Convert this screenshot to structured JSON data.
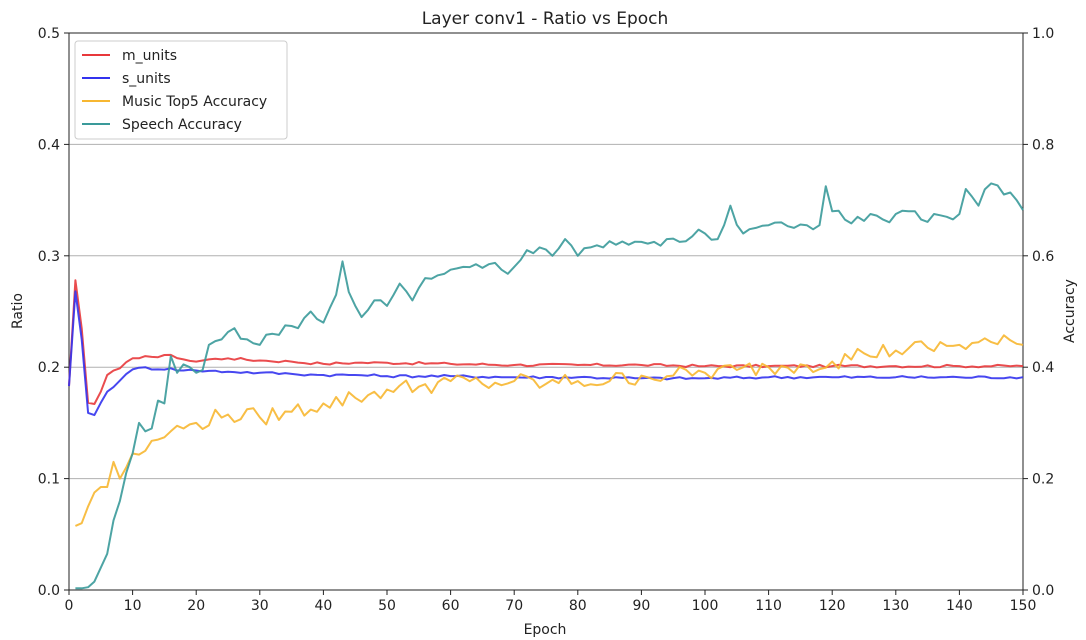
{
  "chart_data": {
    "type": "line",
    "title": "Layer conv1 - Ratio vs Epoch",
    "xlabel": "Epoch",
    "ylabel": "Ratio",
    "y2label": "Accuracy",
    "xlim": [
      0,
      150
    ],
    "ylim": [
      0,
      0.5
    ],
    "y2lim": [
      0,
      1.0
    ],
    "xticks": [
      "0",
      "10",
      "20",
      "30",
      "40",
      "50",
      "60",
      "70",
      "80",
      "90",
      "100",
      "110",
      "120",
      "130",
      "140",
      "150"
    ],
    "yticks": [
      "0.0",
      "0.1",
      "0.2",
      "0.3",
      "0.4",
      "0.5"
    ],
    "y2ticks": [
      "0.0",
      "0.2",
      "0.4",
      "0.6",
      "0.8",
      "1.0"
    ],
    "grid": "horizontal",
    "legend_position": "top-left",
    "series": [
      {
        "name": "m_units",
        "axis": "left",
        "color": "#e8383b",
        "anchors": [
          [
            0,
            0.183
          ],
          [
            1,
            0.278
          ],
          [
            2,
            0.235
          ],
          [
            3,
            0.168
          ],
          [
            4,
            0.167
          ],
          [
            5,
            0.178
          ],
          [
            6,
            0.193
          ],
          [
            8,
            0.199
          ],
          [
            10,
            0.208
          ],
          [
            12,
            0.21
          ],
          [
            14,
            0.209
          ],
          [
            16,
            0.211
          ],
          [
            18,
            0.207
          ],
          [
            20,
            0.205
          ],
          [
            22,
            0.207
          ],
          [
            25,
            0.208
          ],
          [
            30,
            0.206
          ],
          [
            35,
            0.205
          ],
          [
            40,
            0.203
          ],
          [
            45,
            0.204
          ],
          [
            50,
            0.204
          ],
          [
            60,
            0.203
          ],
          [
            70,
            0.202
          ],
          [
            80,
            0.202
          ],
          [
            90,
            0.202
          ],
          [
            100,
            0.201
          ],
          [
            110,
            0.201
          ],
          [
            120,
            0.201
          ],
          [
            130,
            0.201
          ],
          [
            140,
            0.201
          ],
          [
            150,
            0.201
          ]
        ],
        "noise": 0.0012
      },
      {
        "name": "s_units",
        "axis": "left",
        "color": "#3333ee",
        "anchors": [
          [
            0,
            0.183
          ],
          [
            1,
            0.268
          ],
          [
            2,
            0.225
          ],
          [
            3,
            0.159
          ],
          [
            4,
            0.157
          ],
          [
            5,
            0.168
          ],
          [
            6,
            0.178
          ],
          [
            8,
            0.188
          ],
          [
            10,
            0.198
          ],
          [
            12,
            0.2
          ],
          [
            14,
            0.198
          ],
          [
            16,
            0.199
          ],
          [
            18,
            0.197
          ],
          [
            20,
            0.197
          ],
          [
            25,
            0.196
          ],
          [
            30,
            0.195
          ],
          [
            35,
            0.194
          ],
          [
            40,
            0.193
          ],
          [
            45,
            0.193
          ],
          [
            50,
            0.192
          ],
          [
            60,
            0.192
          ],
          [
            70,
            0.191
          ],
          [
            80,
            0.191
          ],
          [
            90,
            0.19
          ],
          [
            100,
            0.19
          ],
          [
            110,
            0.191
          ],
          [
            120,
            0.191
          ],
          [
            130,
            0.191
          ],
          [
            140,
            0.191
          ],
          [
            150,
            0.191
          ]
        ],
        "noise": 0.0012
      },
      {
        "name": "Music Top5 Accuracy",
        "axis": "right",
        "color": "#f7b731",
        "anchors": [
          [
            1,
            0.115
          ],
          [
            2,
            0.12
          ],
          [
            3,
            0.15
          ],
          [
            4,
            0.175
          ],
          [
            5,
            0.185
          ],
          [
            6,
            0.185
          ],
          [
            7,
            0.23
          ],
          [
            8,
            0.2
          ],
          [
            9,
            0.22
          ],
          [
            10,
            0.245
          ],
          [
            12,
            0.25
          ],
          [
            14,
            0.27
          ],
          [
            16,
            0.285
          ],
          [
            18,
            0.29
          ],
          [
            20,
            0.3
          ],
          [
            25,
            0.315
          ],
          [
            30,
            0.31
          ],
          [
            35,
            0.32
          ],
          [
            40,
            0.335
          ],
          [
            45,
            0.345
          ],
          [
            50,
            0.36
          ],
          [
            55,
            0.365
          ],
          [
            60,
            0.375
          ],
          [
            65,
            0.37
          ],
          [
            70,
            0.375
          ],
          [
            75,
            0.37
          ],
          [
            80,
            0.375
          ],
          [
            85,
            0.375
          ],
          [
            90,
            0.385
          ],
          [
            95,
            0.385
          ],
          [
            100,
            0.39
          ],
          [
            105,
            0.395
          ],
          [
            110,
            0.4
          ],
          [
            115,
            0.405
          ],
          [
            120,
            0.41
          ],
          [
            125,
            0.425
          ],
          [
            130,
            0.43
          ],
          [
            135,
            0.435
          ],
          [
            140,
            0.44
          ],
          [
            145,
            0.445
          ],
          [
            150,
            0.44
          ]
        ],
        "noise": 0.016
      },
      {
        "name": "Speech Accuracy",
        "axis": "right",
        "color": "#3a9a9a",
        "anchors": [
          [
            1,
            0.003
          ],
          [
            2,
            0.003
          ],
          [
            3,
            0.005
          ],
          [
            4,
            0.015
          ],
          [
            5,
            0.04
          ],
          [
            6,
            0.065
          ],
          [
            7,
            0.125
          ],
          [
            8,
            0.16
          ],
          [
            9,
            0.21
          ],
          [
            10,
            0.245
          ],
          [
            11,
            0.3
          ],
          [
            12,
            0.285
          ],
          [
            13,
            0.29
          ],
          [
            14,
            0.34
          ],
          [
            15,
            0.335
          ],
          [
            16,
            0.42
          ],
          [
            17,
            0.39
          ],
          [
            18,
            0.405
          ],
          [
            19,
            0.4
          ],
          [
            20,
            0.39
          ],
          [
            21,
            0.395
          ],
          [
            22,
            0.44
          ],
          [
            24,
            0.45
          ],
          [
            26,
            0.47
          ],
          [
            28,
            0.45
          ],
          [
            30,
            0.44
          ],
          [
            32,
            0.46
          ],
          [
            34,
            0.475
          ],
          [
            36,
            0.47
          ],
          [
            38,
            0.5
          ],
          [
            40,
            0.48
          ],
          [
            42,
            0.53
          ],
          [
            43,
            0.59
          ],
          [
            44,
            0.535
          ],
          [
            46,
            0.49
          ],
          [
            48,
            0.52
          ],
          [
            50,
            0.51
          ],
          [
            52,
            0.55
          ],
          [
            54,
            0.52
          ],
          [
            56,
            0.56
          ],
          [
            58,
            0.565
          ],
          [
            60,
            0.575
          ],
          [
            62,
            0.58
          ],
          [
            64,
            0.585
          ],
          [
            66,
            0.585
          ],
          [
            68,
            0.575
          ],
          [
            70,
            0.58
          ],
          [
            72,
            0.61
          ],
          [
            74,
            0.615
          ],
          [
            76,
            0.6
          ],
          [
            78,
            0.63
          ],
          [
            80,
            0.6
          ],
          [
            82,
            0.615
          ],
          [
            84,
            0.615
          ],
          [
            86,
            0.62
          ],
          [
            88,
            0.62
          ],
          [
            90,
            0.625
          ],
          [
            92,
            0.625
          ],
          [
            94,
            0.63
          ],
          [
            96,
            0.625
          ],
          [
            98,
            0.635
          ],
          [
            100,
            0.64
          ],
          [
            102,
            0.63
          ],
          [
            104,
            0.69
          ],
          [
            106,
            0.64
          ],
          [
            108,
            0.65
          ],
          [
            110,
            0.655
          ],
          [
            112,
            0.66
          ],
          [
            114,
            0.65
          ],
          [
            116,
            0.655
          ],
          [
            118,
            0.655
          ],
          [
            119,
            0.725
          ],
          [
            120,
            0.68
          ],
          [
            122,
            0.665
          ],
          [
            124,
            0.67
          ],
          [
            126,
            0.675
          ],
          [
            128,
            0.665
          ],
          [
            130,
            0.675
          ],
          [
            132,
            0.68
          ],
          [
            134,
            0.665
          ],
          [
            136,
            0.675
          ],
          [
            138,
            0.67
          ],
          [
            140,
            0.675
          ],
          [
            141,
            0.72
          ],
          [
            143,
            0.69
          ],
          [
            145,
            0.73
          ],
          [
            147,
            0.71
          ],
          [
            149,
            0.7
          ],
          [
            150,
            0.682
          ]
        ],
        "noise": 0.01
      }
    ]
  }
}
